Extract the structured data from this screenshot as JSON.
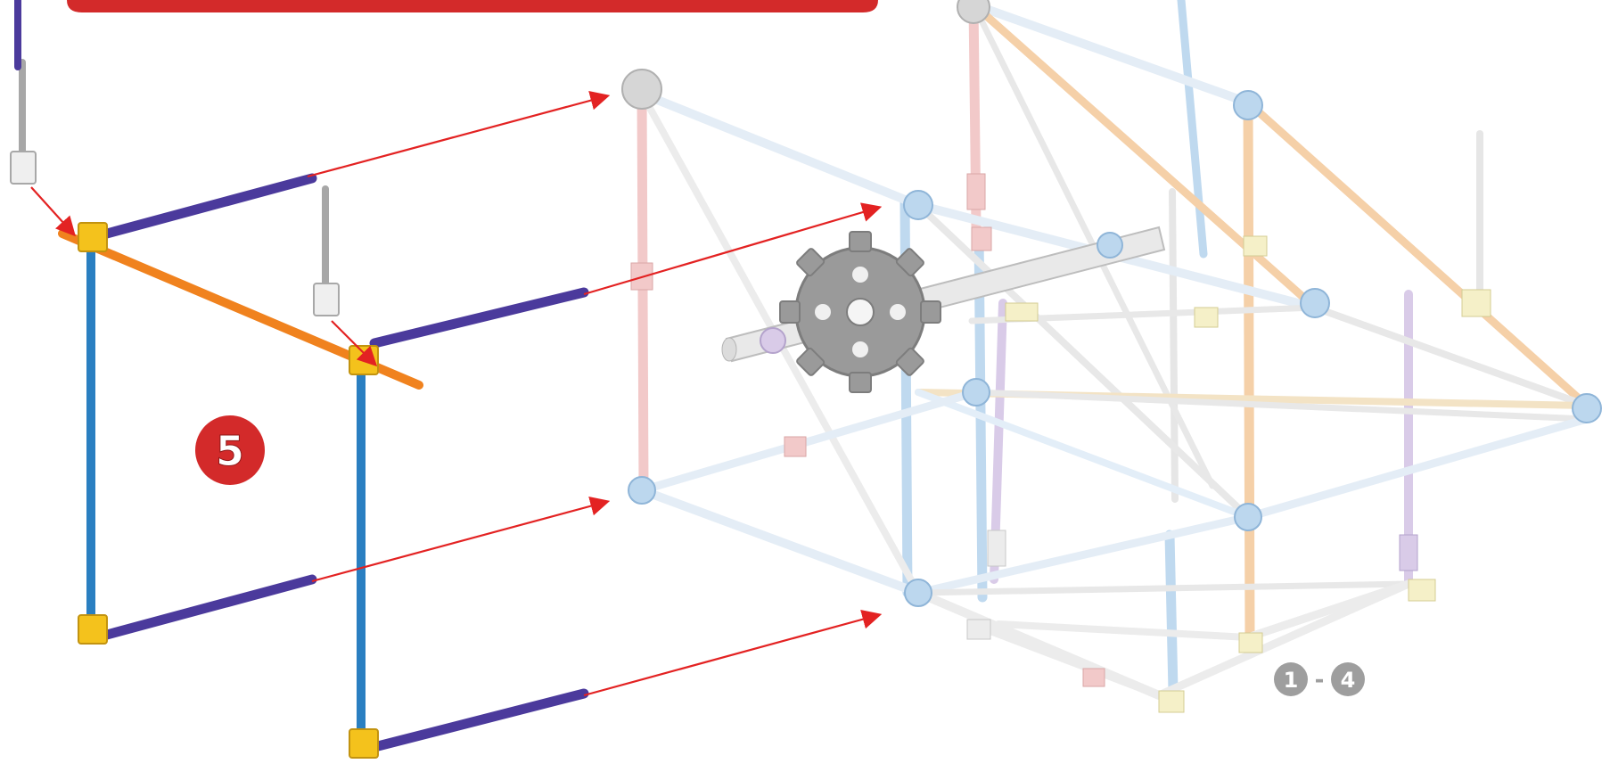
{
  "step": {
    "number": "5",
    "badge_color": "#d32a2a"
  },
  "previous_steps": {
    "from": "1",
    "separator": "-",
    "to": "4",
    "badge_color": "#9e9e9e"
  },
  "colors": {
    "banner": "#d32a2a",
    "arrow": "#e32222",
    "rod_blue": "#2a7fc1",
    "rod_purple": "#4b3a9c",
    "rod_orange": "#f0821e",
    "rod_gray": "#a7a7a7",
    "connector_yellow": "#f4c21c",
    "connector_white": "#efefef",
    "ghost_pink": "#f2c9c9",
    "ghost_blue": "#bfd9ef",
    "ghost_peach": "#f5d0a8",
    "ghost_lavender": "#d9cbe8",
    "gear_gray": "#9a9a9a"
  }
}
